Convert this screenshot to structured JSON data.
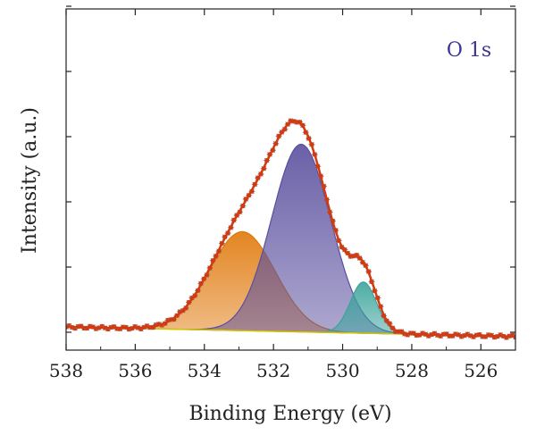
{
  "chart_data": {
    "type": "line",
    "xlabel": "Binding Energy (eV)",
    "ylabel": "Intensity (a.u.)",
    "annotation": "O 1s",
    "xlim": [
      538,
      525
    ],
    "ylim": [
      0,
      1.0
    ],
    "x_ticks": [
      538,
      536,
      534,
      532,
      530,
      528,
      526
    ],
    "background": {
      "left_x": 538,
      "left_y": 0.068,
      "right_x": 525,
      "right_y": 0.04,
      "color": "#d4c400"
    },
    "peaks": [
      {
        "center": 532.9,
        "height": 0.29,
        "sigma": 0.95,
        "color": "#e0780a"
      },
      {
        "center": 531.2,
        "height": 0.55,
        "sigma": 0.85,
        "color": "#5a4f9e"
      },
      {
        "center": 529.4,
        "height": 0.15,
        "sigma": 0.38,
        "color": "#3aa39c"
      }
    ],
    "colors": {
      "envelope": "#d23a12",
      "data_marker": "#888888",
      "axis": "#222222",
      "annotation": "#3b3493"
    }
  }
}
